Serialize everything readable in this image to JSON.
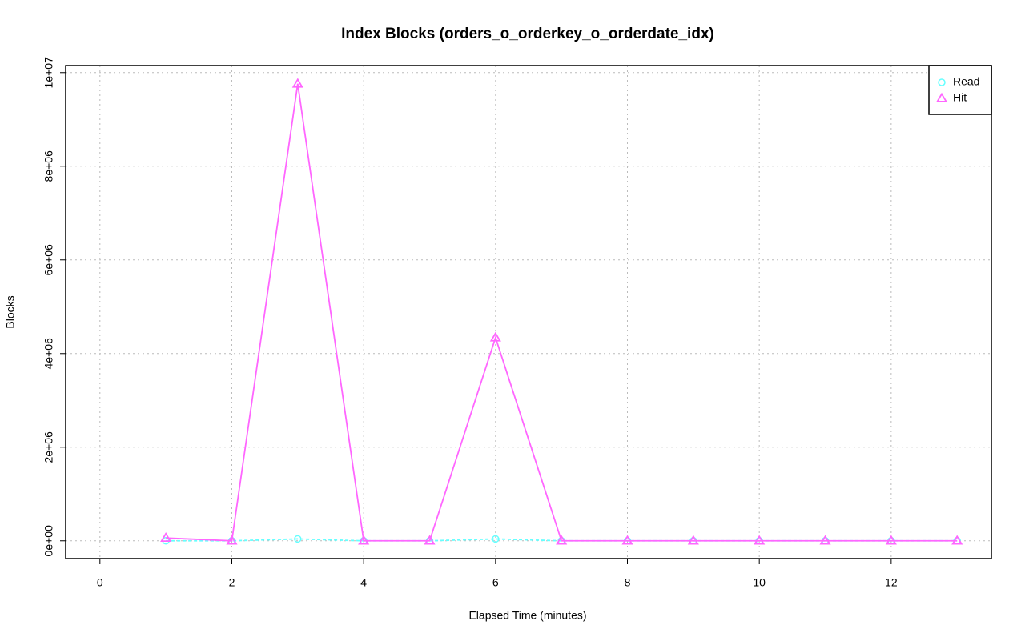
{
  "chart_data": {
    "type": "line",
    "title": "Index Blocks (orders_o_orderkey_o_orderdate_idx)",
    "x_label": "Elapsed Time (minutes)",
    "y_label": "Blocks",
    "x": [
      1,
      2,
      3,
      4,
      5,
      6,
      7,
      8,
      9,
      10,
      11,
      12,
      13
    ],
    "series": [
      {
        "name": "Read",
        "color": "#66ffff",
        "marker": "circle",
        "line_style": "dashed",
        "values": [
          0,
          0,
          40000,
          0,
          0,
          40000,
          0,
          0,
          0,
          0,
          0,
          0,
          0
        ]
      },
      {
        "name": "Hit",
        "color": "#ff66ff",
        "marker": "triangle",
        "line_style": "solid",
        "values": [
          60000,
          0,
          9760000,
          0,
          0,
          4340000,
          0,
          0,
          0,
          0,
          0,
          0,
          0
        ]
      }
    ],
    "xlim": [
      -0.52,
      13.52
    ],
    "ylim": [
      -380000,
      10150000
    ],
    "xticks": [
      0,
      2,
      4,
      6,
      8,
      10,
      12
    ],
    "yticks": [
      {
        "value": 0,
        "label": "0e+00"
      },
      {
        "value": 2000000,
        "label": "2e+06"
      },
      {
        "value": 4000000,
        "label": "4e+06"
      },
      {
        "value": 6000000,
        "label": "6e+06"
      },
      {
        "value": 8000000,
        "label": "8e+06"
      },
      {
        "value": 10000000,
        "label": "1e+07"
      }
    ],
    "grid": true,
    "legend": "top-right"
  }
}
